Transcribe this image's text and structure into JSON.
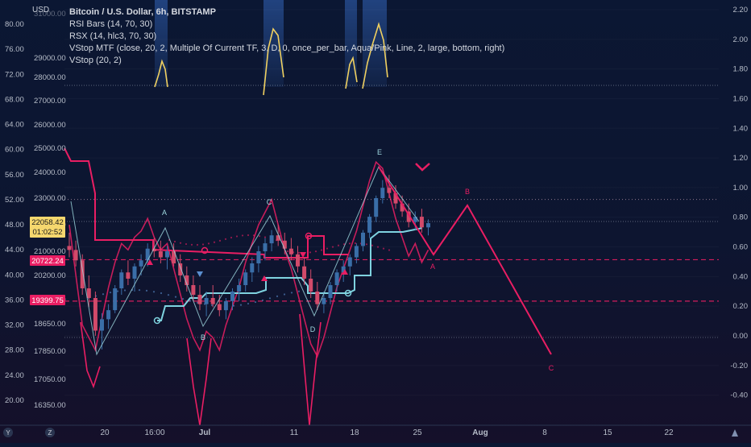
{
  "legend": {
    "title": "Bitcoin / U.S. Dollar, 6h, BITSTAMP",
    "lines": [
      "RSI Bars (14, 70, 30)",
      "RSX (14, hlc3, 70, 30)",
      "VStop MTF (close, 20, 2, Multiple Of Current TF, 3, D, 0, once_per_bar, Aqua/Pink, Line, 2, large, bottom, right)",
      "VStop (20, 2)"
    ]
  },
  "currency_label": "USD",
  "colors": {
    "accent_pink": "#e91e63",
    "aqua": "#7fd3e0",
    "rsx_yellow": "#f0d060",
    "candle_up": "#3a6ea8",
    "candle_down": "#d24a6a",
    "price_tag_bg": "#f5d76e"
  },
  "chart_data": {
    "type": "line",
    "title": "Bitcoin / U.S. Dollar, 6h, BITSTAMP",
    "x_ticks": [
      "20",
      "16:00",
      "Jul",
      "11",
      "18",
      "25",
      "Aug",
      "8",
      "15",
      "22"
    ],
    "price_axis": {
      "ticks": [
        "16350.00",
        "17050.00",
        "17850.00",
        "18650.00",
        "19450.00",
        "20200.00",
        "21000.00",
        "22000.00",
        "23000.00",
        "24000.00",
        "25000.00",
        "26000.00",
        "27000.00",
        "28000.00",
        "29000.00",
        "31000.00"
      ],
      "values": [
        16350,
        17050,
        17850,
        18650,
        19450,
        20200,
        21000,
        22000,
        23000,
        24000,
        25000,
        26000,
        27000,
        28000,
        29000,
        31000
      ]
    },
    "rsi_axis": {
      "ticks": [
        "20.00",
        "24.00",
        "28.00",
        "32.00",
        "36.00",
        "40.00",
        "44.00",
        "48.00",
        "52.00",
        "56.00",
        "60.00",
        "64.00",
        "68.00",
        "72.00",
        "76.00",
        "80.00"
      ],
      "values": [
        20,
        24,
        28,
        32,
        36,
        40,
        44,
        48,
        52,
        56,
        60,
        64,
        68,
        72,
        76,
        80
      ]
    },
    "right_axis": {
      "ticks": [
        "-0.40",
        "-0.20",
        "0.00",
        "0.20",
        "0.40",
        "0.60",
        "0.80",
        "1.00",
        "1.20",
        "1.40",
        "1.60",
        "1.80",
        "2.00",
        "2.20"
      ],
      "values": [
        -0.4,
        -0.2,
        0,
        0.2,
        0.4,
        0.6,
        0.8,
        1.0,
        1.2,
        1.4,
        1.6,
        1.8,
        2.0,
        2.2
      ]
    },
    "price_tags": [
      {
        "value": "22058.42",
        "sub": "01:02:52",
        "kind": "current"
      },
      {
        "value": "20722.24",
        "kind": "level"
      },
      {
        "value": "19399.75",
        "kind": "level"
      }
    ],
    "levels": [
      {
        "name": "upper-dashed",
        "price": 20722.24,
        "style": "dashed"
      },
      {
        "name": "lower-dashed",
        "price": 19399.75,
        "style": "dashed"
      },
      {
        "name": "top-dotted",
        "price": 22950,
        "style": "dotted"
      }
    ],
    "candles": [
      [
        0,
        21200,
        21700,
        20800,
        21050
      ],
      [
        1,
        21050,
        21400,
        20500,
        20700
      ],
      [
        2,
        20700,
        20900,
        19600,
        19800
      ],
      [
        3,
        19800,
        20200,
        19200,
        19500
      ],
      [
        4,
        19500,
        19700,
        18300,
        18450
      ],
      [
        5,
        18450,
        19000,
        17900,
        18800
      ],
      [
        6,
        18800,
        19300,
        18500,
        19100
      ],
      [
        7,
        19100,
        19900,
        19000,
        19800
      ],
      [
        8,
        19800,
        20400,
        19600,
        20300
      ],
      [
        9,
        20300,
        20700,
        19900,
        20100
      ],
      [
        10,
        20100,
        20600,
        19700,
        20500
      ],
      [
        11,
        20500,
        20900,
        20200,
        20700
      ],
      [
        12,
        20700,
        21300,
        20500,
        21100
      ],
      [
        13,
        21100,
        21500,
        20800,
        21000
      ],
      [
        14,
        21000,
        21400,
        20600,
        20800
      ],
      [
        15,
        20800,
        21200,
        20400,
        21000
      ],
      [
        16,
        21000,
        21300,
        20500,
        20600
      ],
      [
        17,
        20600,
        20900,
        20000,
        20200
      ],
      [
        18,
        20200,
        20500,
        19700,
        19900
      ],
      [
        19,
        19900,
        20200,
        19400,
        19600
      ],
      [
        20,
        19600,
        19900,
        19100,
        19300
      ],
      [
        21,
        19300,
        19700,
        18900,
        19500
      ],
      [
        22,
        19500,
        19900,
        19200,
        19300
      ],
      [
        23,
        19300,
        19600,
        18900,
        19100
      ],
      [
        24,
        19100,
        19500,
        18800,
        19400
      ],
      [
        25,
        19400,
        19800,
        19100,
        19700
      ],
      [
        26,
        19700,
        20100,
        19400,
        19900
      ],
      [
        27,
        19900,
        20400,
        19700,
        20300
      ],
      [
        28,
        20300,
        20800,
        20000,
        20600
      ],
      [
        29,
        20600,
        21200,
        20300,
        21000
      ],
      [
        30,
        21000,
        21500,
        20700,
        21300
      ],
      [
        31,
        21300,
        21800,
        21000,
        21600
      ],
      [
        32,
        21600,
        22000,
        21200,
        21400
      ],
      [
        33,
        21400,
        21700,
        20900,
        21100
      ],
      [
        34,
        21100,
        21500,
        20700,
        20900
      ],
      [
        35,
        20900,
        21200,
        20300,
        20500
      ],
      [
        36,
        20500,
        20800,
        19900,
        20100
      ],
      [
        37,
        20100,
        20400,
        19500,
        19700
      ],
      [
        38,
        19700,
        20000,
        19100,
        19300
      ],
      [
        39,
        19300,
        19700,
        19000,
        19500
      ],
      [
        40,
        19500,
        20000,
        19300,
        19900
      ],
      [
        41,
        19900,
        20400,
        19700,
        20300
      ],
      [
        42,
        20300,
        20700,
        20000,
        20500
      ],
      [
        43,
        20500,
        20900,
        20200,
        20800
      ],
      [
        44,
        20800,
        21300,
        20600,
        21200
      ],
      [
        45,
        21200,
        21800,
        21000,
        21700
      ],
      [
        46,
        21700,
        22400,
        21500,
        22300
      ],
      [
        47,
        22300,
        23100,
        22100,
        23000
      ],
      [
        48,
        23000,
        23700,
        22800,
        23400
      ],
      [
        49,
        23400,
        23900,
        23000,
        23200
      ],
      [
        50,
        23200,
        23500,
        22600,
        22800
      ],
      [
        51,
        22800,
        23100,
        22300,
        22500
      ],
      [
        52,
        22500,
        22800,
        21900,
        22100
      ],
      [
        53,
        22100,
        22500,
        21800,
        22300
      ],
      [
        54,
        22300,
        22600,
        21700,
        21900
      ],
      [
        55,
        21900,
        22200,
        21600,
        22058
      ]
    ],
    "rsx_line": [
      [
        0,
        48
      ],
      [
        1,
        40
      ],
      [
        2,
        32
      ],
      [
        3,
        30
      ],
      [
        4,
        28
      ],
      [
        5,
        33
      ],
      [
        6,
        38
      ],
      [
        7,
        42
      ],
      [
        8,
        45
      ],
      [
        9,
        44
      ],
      [
        10,
        46
      ],
      [
        11,
        47
      ],
      [
        12,
        49
      ],
      [
        13,
        46
      ],
      [
        14,
        44
      ],
      [
        15,
        45
      ],
      [
        16,
        41
      ],
      [
        17,
        37
      ],
      [
        18,
        33
      ],
      [
        19,
        30
      ],
      [
        20,
        28
      ],
      [
        21,
        31
      ],
      [
        22,
        30
      ],
      [
        23,
        28
      ],
      [
        24,
        32
      ],
      [
        25,
        35
      ],
      [
        26,
        38
      ],
      [
        27,
        42
      ],
      [
        28,
        45
      ],
      [
        29,
        48
      ],
      [
        30,
        50
      ],
      [
        31,
        52
      ],
      [
        32,
        48
      ],
      [
        33,
        44
      ],
      [
        34,
        41
      ],
      [
        35,
        37
      ],
      [
        36,
        33
      ],
      [
        37,
        29
      ],
      [
        38,
        27
      ],
      [
        39,
        30
      ],
      [
        40,
        34
      ],
      [
        41,
        38
      ],
      [
        42,
        41
      ],
      [
        43,
        44
      ],
      [
        44,
        47
      ],
      [
        45,
        51
      ],
      [
        46,
        55
      ],
      [
        47,
        58
      ],
      [
        48,
        57
      ],
      [
        49,
        53
      ],
      [
        50,
        49
      ],
      [
        51,
        46
      ],
      [
        52,
        43
      ],
      [
        53,
        45
      ],
      [
        54,
        42
      ],
      [
        55,
        44
      ]
    ],
    "wave_labels": [
      {
        "label": "A",
        "x": 13,
        "price": 21650
      },
      {
        "label": "B",
        "x": 19,
        "price": 18700
      },
      {
        "label": "C",
        "x": 31,
        "price": 21950
      },
      {
        "label": "D",
        "x": 37,
        "price": 18750
      },
      {
        "label": "E",
        "x": 48,
        "price": 24200
      }
    ],
    "projection_labels": [
      {
        "label": "B",
        "color": "pink"
      },
      {
        "label": "A",
        "color": "pink"
      },
      {
        "label": "C",
        "color": "pink"
      }
    ]
  }
}
